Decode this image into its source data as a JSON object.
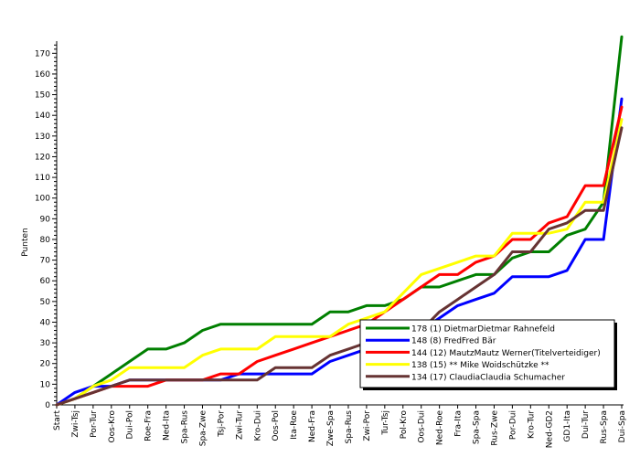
{
  "chart_data": {
    "type": "line",
    "title": "",
    "xlabel": "",
    "ylabel": "Punten",
    "ylim": [
      0,
      175
    ],
    "yticks": [
      0,
      10,
      20,
      30,
      40,
      50,
      60,
      70,
      80,
      90,
      100,
      110,
      120,
      130,
      140,
      150,
      160,
      170
    ],
    "grid": false,
    "legend_position": "bottom-right",
    "categories": [
      "Start",
      "Zwi-Tsj",
      "Por-Tur",
      "Oos-Kro",
      "Dui-Pol",
      "Roe-Fra",
      "Ned-Ita",
      "Spa-Rus",
      "Spa-Zwe",
      "Tsj-Por",
      "Zwi-Tur",
      "Kro-Dui",
      "Oos-Pol",
      "Ita-Roe",
      "Ned-Fra",
      "Zwe-Spa",
      "Spa-Rus",
      "Zwi-Por",
      "Tur-Tsj",
      "Pol-Kro",
      "Oos-Dui",
      "Ned-Roe",
      "Fra-Ita",
      "Spa-Spa",
      "Rus-Zwe",
      "Por-Dui",
      "Kro-Tur",
      "Ned-GD2",
      "GD1-Ita",
      "Dui-Tur",
      "Rus-Spa",
      "Dui-Spa"
    ],
    "series": [
      {
        "name": "178 (1) DietmarDietmar Rahnefeld",
        "color": "#007f00",
        "values": [
          0,
          3,
          9,
          15,
          21,
          27,
          27,
          30,
          36,
          39,
          39,
          39,
          39,
          39,
          39,
          45,
          45,
          48,
          48,
          51,
          57,
          57,
          60,
          63,
          63,
          71,
          74,
          74,
          82,
          85,
          98,
          178
        ]
      },
      {
        "name": "148 (8) FredFred Bär",
        "color": "#0000ff",
        "values": [
          0,
          6,
          9,
          9,
          12,
          12,
          12,
          12,
          12,
          12,
          15,
          15,
          15,
          15,
          15,
          21,
          24,
          27,
          27,
          27,
          36,
          42,
          48,
          51,
          54,
          62,
          62,
          62,
          65,
          80,
          80,
          148
        ]
      },
      {
        "name": "144 (12) MautzMautz Werner(Titelverteidiger)",
        "color": "#ff0000",
        "values": [
          0,
          3,
          6,
          9,
          9,
          9,
          12,
          12,
          12,
          15,
          15,
          21,
          24,
          27,
          30,
          33,
          36,
          39,
          45,
          51,
          57,
          63,
          63,
          69,
          72,
          80,
          80,
          88,
          91,
          106,
          106,
          144
        ]
      },
      {
        "name": "138 (15) ** Mike Woidschützke **",
        "color": "#ffff00",
        "values": [
          0,
          3,
          9,
          12,
          18,
          18,
          18,
          18,
          24,
          27,
          27,
          27,
          33,
          33,
          33,
          33,
          39,
          42,
          45,
          54,
          63,
          66,
          69,
          72,
          72,
          83,
          83,
          83,
          85,
          98,
          98,
          138
        ]
      },
      {
        "name": "134 (17) ClaudiaClaudia Schumacher",
        "color": "#663333",
        "values": [
          0,
          3,
          6,
          9,
          12,
          12,
          12,
          12,
          12,
          12,
          12,
          12,
          18,
          18,
          18,
          24,
          27,
          30,
          30,
          30,
          36,
          45,
          51,
          57,
          63,
          74,
          74,
          85,
          88,
          94,
          94,
          134
        ]
      }
    ]
  }
}
